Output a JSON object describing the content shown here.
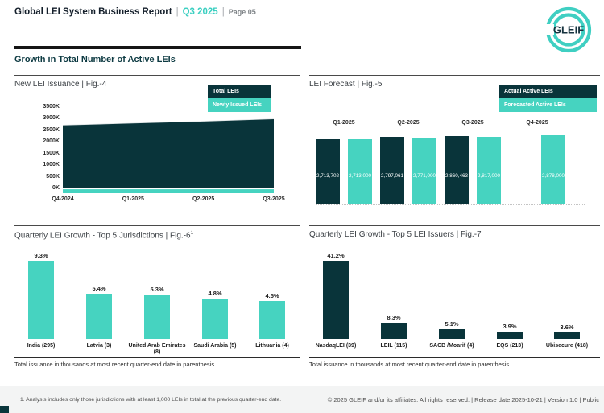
{
  "header": {
    "title": "Global LEI System Business Report",
    "separator": "|",
    "quarter": "Q3 2025",
    "page": "Page 05",
    "logo_text": "GLEIF",
    "section_title": "Growth in Total Number of Active LEIs"
  },
  "colors": {
    "dark": "#09343a",
    "teal": "#46d3c0",
    "header_accent": "#3bcfc1",
    "section_title": "#0d3a42",
    "rule": "#151515",
    "footer_bg": "#f3f4f4"
  },
  "chart_data": [
    {
      "id": "fig4",
      "type": "area",
      "title": "New LEI Issuance | Fig.-4",
      "legend": [
        "Total LEIs",
        "Newly Issued LEIs"
      ],
      "legend_position": "top-right",
      "x": [
        "Q4-2024",
        "Q1-2025",
        "Q2-2025",
        "Q3-2025"
      ],
      "series": [
        {
          "name": "Total LEIs",
          "color": "dark",
          "values_thousands": [
            2800,
            2880,
            2960,
            3055
          ],
          "estimated_from_pixels": true
        },
        {
          "name": "Newly Issued LEIs",
          "color": "teal",
          "values_thousands": [
            130,
            130,
            130,
            130
          ],
          "estimated_from_pixels": true
        }
      ],
      "ylim_thousands": [
        0,
        3500
      ],
      "yticks": [
        "3500K",
        "3000K",
        "2500K",
        "2000K",
        "1500K",
        "1000K",
        "500K",
        "0K"
      ],
      "grid": false
    },
    {
      "id": "fig5",
      "type": "bar",
      "title": "LEI Forecast | Fig.-5",
      "legend": [
        "Actual Active LEIs",
        "Forecasted Active LEIs"
      ],
      "legend_position": "top-right",
      "categories": [
        "Q1-2025",
        "Q2-2025",
        "Q3-2025",
        "Q4-2025"
      ],
      "series": [
        {
          "name": "Actual Active LEIs",
          "color": "dark",
          "values": [
            2713702,
            2797061,
            2860463,
            null
          ],
          "labels": [
            "2,713,702",
            "2,797,061",
            "2,860,463",
            ""
          ]
        },
        {
          "name": "Forecasted Active LEIs",
          "color": "teal",
          "values": [
            2713000,
            2771000,
            2817000,
            2878000
          ],
          "labels": [
            "2,713,000",
            "2,771,000",
            "2,817,000",
            "2,878,000"
          ]
        }
      ],
      "category_labels_position": "above-bars",
      "grid": false
    },
    {
      "id": "fig6",
      "type": "bar",
      "title": "Quarterly LEI Growth - Top 5 Jurisdictions | Fig.-6",
      "title_superscript": "1",
      "categories": [
        "India (295)",
        "Latvia (3)",
        "United Arab Emirates (8)",
        "Saudi Arabia (5)",
        "Lithuania (4)"
      ],
      "values": [
        9.3,
        5.4,
        5.3,
        4.8,
        4.5
      ],
      "labels": [
        "9.3%",
        "5.4%",
        "5.3%",
        "4.8%",
        "4.5%"
      ],
      "bar_color": "teal",
      "note": "Total issuance in thousands at most recent quarter-end date in parenthesis",
      "grid": false
    },
    {
      "id": "fig7",
      "type": "bar",
      "title": "Quarterly LEI Growth - Top 5 LEI Issuers | Fig.-7",
      "categories": [
        "NasdaqLEI (39)",
        "LEIL (115)",
        "SACB /Moarif (4)",
        "EQS (213)",
        "Ubisecure (418)"
      ],
      "values": [
        41.2,
        8.3,
        5.1,
        3.9,
        3.6
      ],
      "labels": [
        "41.2%",
        "8.3%",
        "5.1%",
        "3.9%",
        "3.6%"
      ],
      "bar_color": "dark",
      "note": "Total issuance in thousands at most recent quarter-end date in parenthesis",
      "grid": false
    }
  ],
  "footer": {
    "note": "1. Analysis includes only those jurisdictions with at least 1,000 LEIs in total at the previous quarter-end date.",
    "copyright": "© 2025 GLEIF and/or its affiliates. All rights reserved. | Release date 2025-10-21 | Version 1.0 | Public"
  }
}
